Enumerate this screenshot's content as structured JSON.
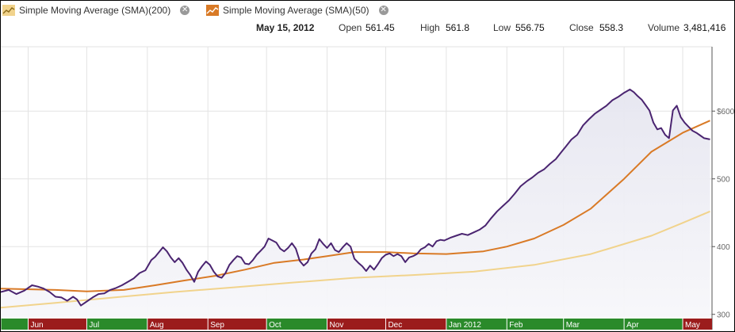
{
  "legend": [
    {
      "label": "Simple Moving Average (SMA)(200)",
      "icon": "sma-200-icon",
      "color": "#f1d38c"
    },
    {
      "label": "Simple Moving Average (SMA)(50)",
      "icon": "sma-50-icon",
      "color": "#d97a26"
    }
  ],
  "ohlc": {
    "date": "May 15, 2012",
    "open_label": "Open",
    "open": "561.45",
    "high_label": "High",
    "high": "561.8",
    "low_label": "Low",
    "low": "556.75",
    "close_label": "Close",
    "close": "558.3",
    "volume_label": "Volume",
    "volume": "3,481,416"
  },
  "chart_data": {
    "type": "line",
    "y_ticks": [
      {
        "value": 300,
        "label": "300"
      },
      {
        "value": 400,
        "label": "400"
      },
      {
        "value": 500,
        "label": "500"
      },
      {
        "value": 600,
        "label": "$600"
      }
    ],
    "ylim": [
      295,
      695
    ],
    "x_range": [
      "2011-05-18",
      "2012-05-16"
    ],
    "months": [
      {
        "label": "Jun",
        "start": "2011-06-01",
        "color": "#9b1c1c"
      },
      {
        "label": "Jul",
        "start": "2011-07-01",
        "color": "#2a8a2a"
      },
      {
        "label": "Aug",
        "start": "2011-08-01",
        "color": "#9b1c1c"
      },
      {
        "label": "Sep",
        "start": "2011-09-01",
        "color": "#9b1c1c"
      },
      {
        "label": "Oct",
        "start": "2011-10-01",
        "color": "#2a8a2a"
      },
      {
        "label": "Nov",
        "start": "2011-11-01",
        "color": "#9b1c1c"
      },
      {
        "label": "Dec",
        "start": "2011-12-01",
        "color": "#9b1c1c"
      },
      {
        "label": "Jan 2012",
        "start": "2012-01-01",
        "color": "#2a8a2a"
      },
      {
        "label": "Feb",
        "start": "2012-02-01",
        "color": "#2a8a2a"
      },
      {
        "label": "Mar",
        "start": "2012-03-01",
        "color": "#2a8a2a"
      },
      {
        "label": "Apr",
        "start": "2012-04-01",
        "color": "#2a8a2a"
      },
      {
        "label": "May",
        "start": "2012-05-01",
        "color": "#9b1c1c"
      }
    ],
    "series": [
      {
        "key": "price",
        "color": "#4a2470",
        "points": [
          [
            "2011-05-18",
            333
          ],
          [
            "2011-05-22",
            336
          ],
          [
            "2011-05-26",
            330
          ],
          [
            "2011-05-30",
            335
          ],
          [
            "2011-06-03",
            343
          ],
          [
            "2011-06-06",
            341
          ],
          [
            "2011-06-09",
            338
          ],
          [
            "2011-06-12",
            333
          ],
          [
            "2011-06-15",
            326
          ],
          [
            "2011-06-18",
            325
          ],
          [
            "2011-06-21",
            320
          ],
          [
            "2011-06-24",
            326
          ],
          [
            "2011-06-26",
            322
          ],
          [
            "2011-06-28",
            313
          ],
          [
            "2011-07-01",
            319
          ],
          [
            "2011-07-04",
            325
          ],
          [
            "2011-07-07",
            330
          ],
          [
            "2011-07-10",
            331
          ],
          [
            "2011-07-13",
            336
          ],
          [
            "2011-07-16",
            339
          ],
          [
            "2011-07-19",
            343
          ],
          [
            "2011-07-22",
            348
          ],
          [
            "2011-07-25",
            353
          ],
          [
            "2011-07-28",
            361
          ],
          [
            "2011-07-31",
            365
          ],
          [
            "2011-08-03",
            380
          ],
          [
            "2011-08-05",
            385
          ],
          [
            "2011-08-07",
            392
          ],
          [
            "2011-08-09",
            399
          ],
          [
            "2011-08-11",
            393
          ],
          [
            "2011-08-13",
            384
          ],
          [
            "2011-08-15",
            377
          ],
          [
            "2011-08-17",
            383
          ],
          [
            "2011-08-19",
            376
          ],
          [
            "2011-08-21",
            366
          ],
          [
            "2011-08-23",
            358
          ],
          [
            "2011-08-25",
            348
          ],
          [
            "2011-08-27",
            363
          ],
          [
            "2011-08-29",
            371
          ],
          [
            "2011-08-31",
            378
          ],
          [
            "2011-09-02",
            373
          ],
          [
            "2011-09-04",
            363
          ],
          [
            "2011-09-06",
            356
          ],
          [
            "2011-09-08",
            354
          ],
          [
            "2011-09-10",
            361
          ],
          [
            "2011-09-12",
            373
          ],
          [
            "2011-09-14",
            380
          ],
          [
            "2011-09-16",
            386
          ],
          [
            "2011-09-18",
            384
          ],
          [
            "2011-09-20",
            375
          ],
          [
            "2011-09-22",
            374
          ],
          [
            "2011-09-24",
            380
          ],
          [
            "2011-09-26",
            388
          ],
          [
            "2011-09-28",
            394
          ],
          [
            "2011-09-30",
            400
          ],
          [
            "2011-10-02",
            412
          ],
          [
            "2011-10-04",
            409
          ],
          [
            "2011-10-06",
            406
          ],
          [
            "2011-10-08",
            397
          ],
          [
            "2011-10-10",
            393
          ],
          [
            "2011-10-12",
            398
          ],
          [
            "2011-10-14",
            405
          ],
          [
            "2011-10-16",
            397
          ],
          [
            "2011-10-18",
            379
          ],
          [
            "2011-10-20",
            372
          ],
          [
            "2011-10-22",
            377
          ],
          [
            "2011-10-24",
            390
          ],
          [
            "2011-10-26",
            396
          ],
          [
            "2011-10-28",
            411
          ],
          [
            "2011-10-30",
            404
          ],
          [
            "2011-11-01",
            398
          ],
          [
            "2011-11-03",
            405
          ],
          [
            "2011-11-05",
            395
          ],
          [
            "2011-11-07",
            392
          ],
          [
            "2011-11-09",
            399
          ],
          [
            "2011-11-11",
            405
          ],
          [
            "2011-11-13",
            400
          ],
          [
            "2011-11-15",
            382
          ],
          [
            "2011-11-17",
            376
          ],
          [
            "2011-11-19",
            371
          ],
          [
            "2011-11-21",
            364
          ],
          [
            "2011-11-23",
            372
          ],
          [
            "2011-11-25",
            366
          ],
          [
            "2011-11-27",
            374
          ],
          [
            "2011-11-29",
            383
          ],
          [
            "2011-12-01",
            388
          ],
          [
            "2011-12-03",
            390
          ],
          [
            "2011-12-05",
            386
          ],
          [
            "2011-12-07",
            389
          ],
          [
            "2011-12-09",
            386
          ],
          [
            "2011-12-11",
            377
          ],
          [
            "2011-12-13",
            384
          ],
          [
            "2011-12-15",
            386
          ],
          [
            "2011-12-17",
            389
          ],
          [
            "2011-12-19",
            396
          ],
          [
            "2011-12-21",
            399
          ],
          [
            "2011-12-23",
            404
          ],
          [
            "2011-12-25",
            400
          ],
          [
            "2011-12-27",
            408
          ],
          [
            "2011-12-29",
            410
          ],
          [
            "2011-12-31",
            409
          ],
          [
            "2012-01-03",
            413
          ],
          [
            "2012-01-06",
            416
          ],
          [
            "2012-01-09",
            419
          ],
          [
            "2012-01-12",
            417
          ],
          [
            "2012-01-15",
            421
          ],
          [
            "2012-01-18",
            425
          ],
          [
            "2012-01-21",
            431
          ],
          [
            "2012-01-24",
            442
          ],
          [
            "2012-01-27",
            452
          ],
          [
            "2012-01-30",
            460
          ],
          [
            "2012-02-02",
            468
          ],
          [
            "2012-02-05",
            478
          ],
          [
            "2012-02-08",
            489
          ],
          [
            "2012-02-11",
            496
          ],
          [
            "2012-02-14",
            502
          ],
          [
            "2012-02-17",
            509
          ],
          [
            "2012-02-20",
            514
          ],
          [
            "2012-02-23",
            522
          ],
          [
            "2012-02-26",
            529
          ],
          [
            "2012-02-29",
            540
          ],
          [
            "2012-03-02",
            547
          ],
          [
            "2012-03-05",
            558
          ],
          [
            "2012-03-08",
            565
          ],
          [
            "2012-03-11",
            579
          ],
          [
            "2012-03-14",
            588
          ],
          [
            "2012-03-17",
            596
          ],
          [
            "2012-03-20",
            602
          ],
          [
            "2012-03-23",
            608
          ],
          [
            "2012-03-26",
            616
          ],
          [
            "2012-03-29",
            621
          ],
          [
            "2012-04-01",
            627
          ],
          [
            "2012-04-04",
            632
          ],
          [
            "2012-04-06",
            628
          ],
          [
            "2012-04-08",
            622
          ],
          [
            "2012-04-10",
            617
          ],
          [
            "2012-04-12",
            609
          ],
          [
            "2012-04-14",
            601
          ],
          [
            "2012-04-16",
            583
          ],
          [
            "2012-04-18",
            573
          ],
          [
            "2012-04-20",
            575
          ],
          [
            "2012-04-22",
            565
          ],
          [
            "2012-04-24",
            560
          ],
          [
            "2012-04-26",
            601
          ],
          [
            "2012-04-28",
            608
          ],
          [
            "2012-04-30",
            591
          ],
          [
            "2012-05-02",
            583
          ],
          [
            "2012-05-04",
            577
          ],
          [
            "2012-05-06",
            571
          ],
          [
            "2012-05-08",
            568
          ],
          [
            "2012-05-10",
            564
          ],
          [
            "2012-05-12",
            560
          ],
          [
            "2012-05-15",
            558.3
          ]
        ]
      },
      {
        "key": "sma50",
        "color": "#d97a26",
        "points": [
          [
            "2011-05-18",
            338
          ],
          [
            "2011-06-15",
            336
          ],
          [
            "2011-07-01",
            334
          ],
          [
            "2011-07-20",
            336
          ],
          [
            "2011-08-05",
            343
          ],
          [
            "2011-08-20",
            350
          ],
          [
            "2011-09-05",
            357
          ],
          [
            "2011-09-20",
            366
          ],
          [
            "2011-10-05",
            376
          ],
          [
            "2011-10-20",
            381
          ],
          [
            "2011-11-01",
            386
          ],
          [
            "2011-11-15",
            392
          ],
          [
            "2011-12-01",
            392
          ],
          [
            "2011-12-15",
            390
          ],
          [
            "2012-01-01",
            389
          ],
          [
            "2012-01-20",
            393
          ],
          [
            "2012-02-01",
            400
          ],
          [
            "2012-02-15",
            412
          ],
          [
            "2012-03-01",
            432
          ],
          [
            "2012-03-15",
            456
          ],
          [
            "2012-04-01",
            500
          ],
          [
            "2012-04-15",
            540
          ],
          [
            "2012-05-01",
            568
          ],
          [
            "2012-05-15",
            586
          ]
        ]
      },
      {
        "key": "sma200",
        "color": "#f1d38c",
        "points": [
          [
            "2011-05-18",
            310
          ],
          [
            "2011-06-15",
            317
          ],
          [
            "2011-07-15",
            325
          ],
          [
            "2011-08-15",
            333
          ],
          [
            "2011-09-15",
            340
          ],
          [
            "2011-10-15",
            347
          ],
          [
            "2011-11-15",
            354
          ],
          [
            "2011-12-15",
            358
          ],
          [
            "2012-01-15",
            363
          ],
          [
            "2012-02-15",
            373
          ],
          [
            "2012-03-15",
            389
          ],
          [
            "2012-04-15",
            416
          ],
          [
            "2012-05-01",
            435
          ],
          [
            "2012-05-15",
            452
          ]
        ]
      }
    ]
  }
}
